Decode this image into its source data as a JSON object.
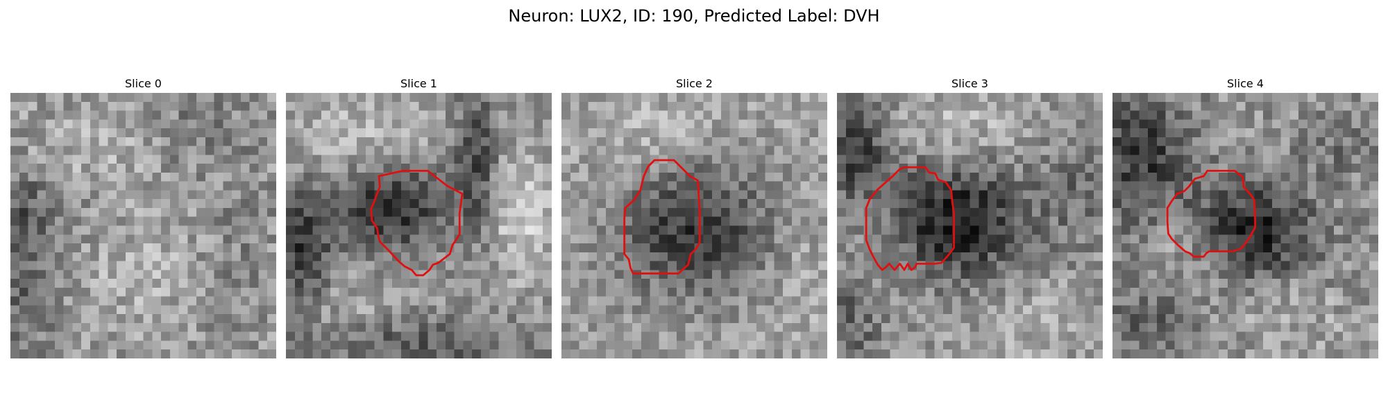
{
  "figure": {
    "title": "Neuron: LUX2, ID: 190, Predicted Label: DVH"
  },
  "panels": [
    {
      "title": "Slice 0",
      "has_outline": false
    },
    {
      "title": "Slice 1",
      "has_outline": true
    },
    {
      "title": "Slice 2",
      "has_outline": true
    },
    {
      "title": "Slice 3",
      "has_outline": true
    },
    {
      "title": "Slice 4",
      "has_outline": true
    }
  ],
  "colors": {
    "outline": "#e01010",
    "background": "#ffffff"
  }
}
